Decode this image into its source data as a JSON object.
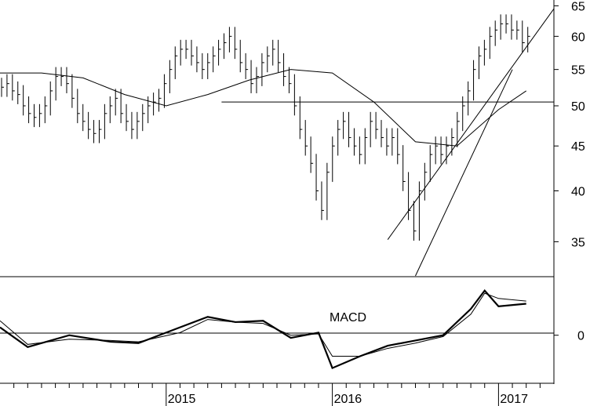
{
  "chart_data": {
    "type": "line",
    "price_panel": {
      "bar_type": "ohlc",
      "y_scale": "log",
      "ylim": [
        32,
        66
      ],
      "yticks": [
        "65",
        "60",
        "55",
        "50",
        "45",
        "40",
        "35"
      ],
      "x_range": [
        "2014-01",
        "2017-05"
      ],
      "moving_average_x": [
        "2014-01",
        "2014-04",
        "2014-07",
        "2014-10",
        "2015-01",
        "2015-04",
        "2015-07",
        "2015-10",
        "2016-01",
        "2016-04",
        "2016-07",
        "2016-10",
        "2017-01",
        "2017-03"
      ],
      "moving_average": [
        54.5,
        54.5,
        53.8,
        51.5,
        50.0,
        51.5,
        53.5,
        55.0,
        54.5,
        50.5,
        45.5,
        45.0,
        49.5,
        52.0
      ],
      "weekly_closes": [
        52.5,
        53,
        52,
        51.5,
        50,
        49,
        48.5,
        49,
        50,
        52,
        54,
        54,
        53,
        51,
        49,
        48,
        47,
        46.5,
        47,
        49,
        50,
        51,
        49,
        48,
        47,
        48,
        49,
        50,
        50.5,
        51,
        53,
        55,
        57,
        58,
        58,
        57,
        56,
        55,
        56,
        57,
        58,
        59,
        60,
        58,
        56,
        55,
        53,
        54,
        56,
        57,
        58,
        56,
        54,
        53,
        50,
        47,
        45,
        43,
        40,
        38,
        42,
        45,
        47,
        48,
        46,
        45,
        44,
        46,
        48,
        47,
        46,
        45,
        46,
        44,
        41,
        38,
        36,
        40,
        42,
        44,
        45,
        44,
        45,
        46,
        48,
        50,
        52,
        55,
        57,
        58,
        60,
        61,
        62,
        62,
        61,
        61,
        59,
        60
      ],
      "lines": [
        {
          "from": [
            "2015-05",
            50.5
          ],
          "to": [
            "2017-05",
            50.5
          ]
        },
        {
          "from": [
            "2016-05",
            35.2
          ],
          "to": [
            "2017-05",
            64.5
          ]
        },
        {
          "from": [
            "2016-07",
            32.0
          ],
          "to": [
            "2017-02",
            55.0
          ]
        }
      ]
    },
    "macd_panel": {
      "label": "MACD",
      "ylim": [
        -1.8,
        2.2
      ],
      "yticks": [
        "0"
      ],
      "x": [
        "2014-01",
        "2014-03",
        "2014-06",
        "2014-09",
        "2014-11",
        "2015-02",
        "2015-04",
        "2015-06",
        "2015-08",
        "2015-10",
        "2015-12",
        "2016-01",
        "2016-03",
        "2016-05",
        "2016-07",
        "2016-09",
        "2016-11",
        "2016-12",
        "2017-01",
        "2017-03"
      ],
      "macd": [
        0.3,
        -0.45,
        0.0,
        -0.25,
        -0.3,
        0.3,
        0.7,
        0.5,
        0.55,
        -0.1,
        0.1,
        -1.25,
        -0.8,
        -0.4,
        -0.2,
        0.0,
        1.0,
        1.7,
        1.1,
        1.2
      ],
      "signal": [
        0.55,
        -0.35,
        -0.15,
        -0.2,
        -0.25,
        0.1,
        0.6,
        0.5,
        0.45,
        0.0,
        0.05,
        -0.8,
        -0.8,
        -0.5,
        -0.3,
        -0.05,
        0.8,
        1.6,
        1.4,
        1.3
      ]
    },
    "x_axis": {
      "labels": [
        "2015",
        "2016",
        "2017"
      ],
      "label_x": [
        "2015-01",
        "2016-01",
        "2017-01"
      ]
    }
  }
}
